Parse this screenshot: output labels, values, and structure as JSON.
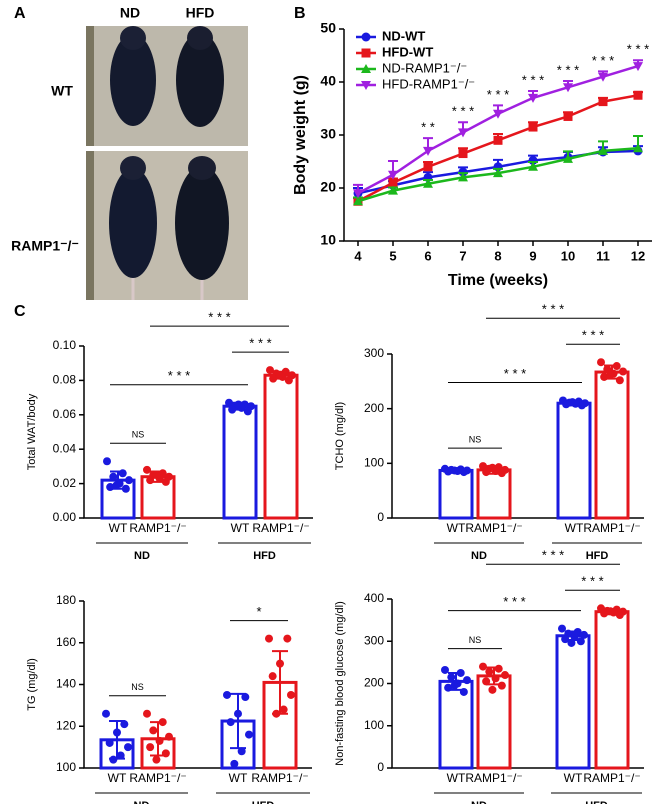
{
  "panel_labels": [
    "A",
    "B",
    "C"
  ],
  "panel_a": {
    "columns": [
      "ND",
      "HFD"
    ],
    "rows": [
      "WT",
      "RAMP1⁻/⁻"
    ]
  },
  "chart_data": [
    {
      "type": "line",
      "x_label": "Time (weeks)",
      "y_label": "Body weight (g)",
      "x": [
        4,
        5,
        6,
        7,
        8,
        9,
        10,
        11,
        12
      ],
      "xlim": [
        3.6,
        12.4
      ],
      "xticks": [
        4,
        5,
        6,
        7,
        8,
        9,
        10,
        11,
        12
      ],
      "ylim": [
        10,
        50
      ],
      "yticks": [
        10,
        20,
        30,
        40,
        50
      ],
      "series": [
        {
          "name": "ND-WT",
          "color": "#1a1adf",
          "marker": "circle",
          "values": [
            19,
            20.5,
            22,
            23,
            24,
            25.2,
            25.8,
            26.8,
            27
          ],
          "errors": [
            1,
            0.8,
            1,
            0.9,
            1.3,
            0.9,
            1,
            0.9,
            0.9
          ]
        },
        {
          "name": "HFD-WT",
          "color": "#e5161c",
          "marker": "square",
          "values": [
            17.5,
            21,
            24,
            26.5,
            29,
            31.5,
            33.5,
            36.3,
            37.5
          ],
          "errors": [
            0.6,
            0.8,
            0.9,
            1,
            1.2,
            0.9,
            0.8,
            0.7,
            0.6
          ]
        },
        {
          "name": "ND-RAMP1⁻/⁻",
          "color": "#1cb81c",
          "marker": "triangle",
          "values": [
            17.5,
            19.5,
            20.8,
            22,
            22.8,
            24,
            25.5,
            27,
            27.5
          ],
          "errors": [
            0.7,
            0.6,
            0.7,
            0.8,
            0.8,
            0.9,
            1.4,
            1.8,
            2.3
          ]
        },
        {
          "name": "HFD-RAMP1⁻/⁻",
          "color": "#a020e0",
          "marker": "triangle-down",
          "values": [
            19,
            22.5,
            27,
            30.5,
            34,
            37,
            39,
            41,
            43
          ],
          "errors": [
            1.6,
            2.6,
            2.4,
            1.9,
            1.6,
            1.3,
            1.2,
            1,
            1.1
          ]
        }
      ],
      "annotations": [
        {
          "x": 6,
          "text": "* *"
        },
        {
          "x": 7,
          "text": "* * *"
        },
        {
          "x": 8,
          "text": "* * *"
        },
        {
          "x": 9,
          "text": "* * *"
        },
        {
          "x": 10,
          "text": "* * *"
        },
        {
          "x": 11,
          "text": "* * *"
        },
        {
          "x": 12,
          "text": "* * *"
        }
      ]
    },
    {
      "type": "bar",
      "y_label": "Total WAT/body",
      "categories": [
        "WT",
        "RAMP1⁻/⁻",
        "WT",
        "RAMP1⁻/⁻"
      ],
      "groups": [
        "ND",
        "HFD"
      ],
      "colors": [
        "#1a1adf",
        "#e5161c",
        "#1a1adf",
        "#e5161c"
      ],
      "ylim": [
        0,
        0.1
      ],
      "yticks": [
        {
          "value": 0,
          "label": "0.00"
        },
        0.02,
        0.04,
        0.06,
        0.08,
        {
          "value": 0.1,
          "label": "0.10"
        }
      ],
      "values": [
        0.022,
        0.024,
        0.065,
        0.083
      ],
      "errors": [
        0.005,
        0.003,
        0.002,
        0.002
      ],
      "points": [
        [
          0.033,
          0.026,
          0.024,
          0.022,
          0.02,
          0.018,
          0.017,
          0.019
        ],
        [
          0.028,
          0.026,
          0.025,
          0.024,
          0.023,
          0.022,
          0.021,
          0.025
        ],
        [
          0.067,
          0.066,
          0.065,
          0.065,
          0.064,
          0.063,
          0.062,
          0.066
        ],
        [
          0.086,
          0.085,
          0.084,
          0.083,
          0.082,
          0.081,
          0.08,
          0.083
        ]
      ],
      "comparisons": [
        {
          "from": 0,
          "to": 1,
          "label": "NS"
        },
        {
          "from": 2,
          "to": 3,
          "label": "* * *"
        },
        {
          "from": 0,
          "to": 2,
          "label": "* * *"
        },
        {
          "from": 1,
          "to": 3,
          "label": "* * *"
        }
      ]
    },
    {
      "type": "bar",
      "y_label": "TCHO (mg/dl)",
      "categories": [
        "WT",
        "RAMP1⁻/⁻",
        "WT",
        "RAMP1⁻/⁻"
      ],
      "groups": [
        "ND",
        "HFD"
      ],
      "colors": [
        "#1a1adf",
        "#e5161c",
        "#1a1adf",
        "#e5161c"
      ],
      "ylim": [
        0,
        300
      ],
      "yticks": [
        0,
        100,
        200,
        300
      ],
      "values": [
        87,
        88,
        210,
        267
      ],
      "errors": [
        4,
        7,
        4,
        12
      ],
      "points": [
        [
          90,
          89,
          88,
          87,
          86,
          85,
          84,
          87
        ],
        [
          95,
          93,
          90,
          88,
          86,
          84,
          82,
          92
        ],
        [
          215,
          213,
          211,
          210,
          209,
          208,
          206,
          212
        ],
        [
          285,
          278,
          272,
          268,
          264,
          258,
          252,
          262
        ]
      ],
      "comparisons": [
        {
          "from": 0,
          "to": 1,
          "label": "NS"
        },
        {
          "from": 2,
          "to": 3,
          "label": "* * *"
        },
        {
          "from": 0,
          "to": 2,
          "label": "* * *"
        },
        {
          "from": 1,
          "to": 3,
          "label": "* * *"
        }
      ]
    },
    {
      "type": "bar",
      "y_label": "TG (mg/dl)",
      "categories": [
        "WT",
        "RAMP1⁻/⁻",
        "WT",
        "RAMP1⁻/⁻"
      ],
      "groups": [
        "ND",
        "HFD"
      ],
      "colors": [
        "#1a1adf",
        "#e5161c",
        "#1a1adf",
        "#e5161c"
      ],
      "ylim": [
        100,
        180
      ],
      "yticks": [
        100,
        120,
        140,
        160,
        180
      ],
      "values": [
        113.5,
        114,
        122.5,
        141
      ],
      "errors": [
        9,
        8,
        13,
        15
      ],
      "points": [
        [
          126,
          121,
          117,
          112,
          110,
          106,
          104
        ],
        [
          126,
          122,
          118,
          115,
          113,
          110,
          107,
          104
        ],
        [
          135,
          134,
          126,
          122,
          116,
          108,
          102
        ],
        [
          162,
          162,
          150,
          144,
          135,
          128,
          126
        ]
      ],
      "comparisons": [
        {
          "from": 0,
          "to": 1,
          "label": "NS"
        },
        {
          "from": 2,
          "to": 3,
          "label": "*"
        }
      ]
    },
    {
      "type": "bar",
      "y_label": "Non-fasting blood glucose  (mg/dl)",
      "categories": [
        "WT",
        "RAMP1⁻/⁻",
        "WT",
        "RAMP1⁻/⁻"
      ],
      "groups": [
        "ND",
        "HFD"
      ],
      "colors": [
        "#1a1adf",
        "#e5161c",
        "#1a1adf",
        "#e5161c"
      ],
      "ylim": [
        0,
        400
      ],
      "yticks": [
        0,
        100,
        200,
        300,
        400
      ],
      "values": [
        205,
        218,
        313,
        370
      ],
      "errors": [
        20,
        20,
        10,
        6
      ],
      "points": [
        [
          232,
          225,
          215,
          208,
          200,
          190,
          180,
          195
        ],
        [
          240,
          235,
          228,
          220,
          212,
          205,
          195,
          185
        ],
        [
          330,
          322,
          318,
          315,
          310,
          305,
          300,
          296
        ],
        [
          378,
          375,
          372,
          370,
          368,
          366,
          362,
          371
        ]
      ],
      "comparisons": [
        {
          "from": 0,
          "to": 1,
          "label": "NS"
        },
        {
          "from": 2,
          "to": 3,
          "label": "* * *"
        },
        {
          "from": 0,
          "to": 2,
          "label": "* * *"
        },
        {
          "from": 1,
          "to": 3,
          "label": "* * *"
        }
      ]
    }
  ]
}
